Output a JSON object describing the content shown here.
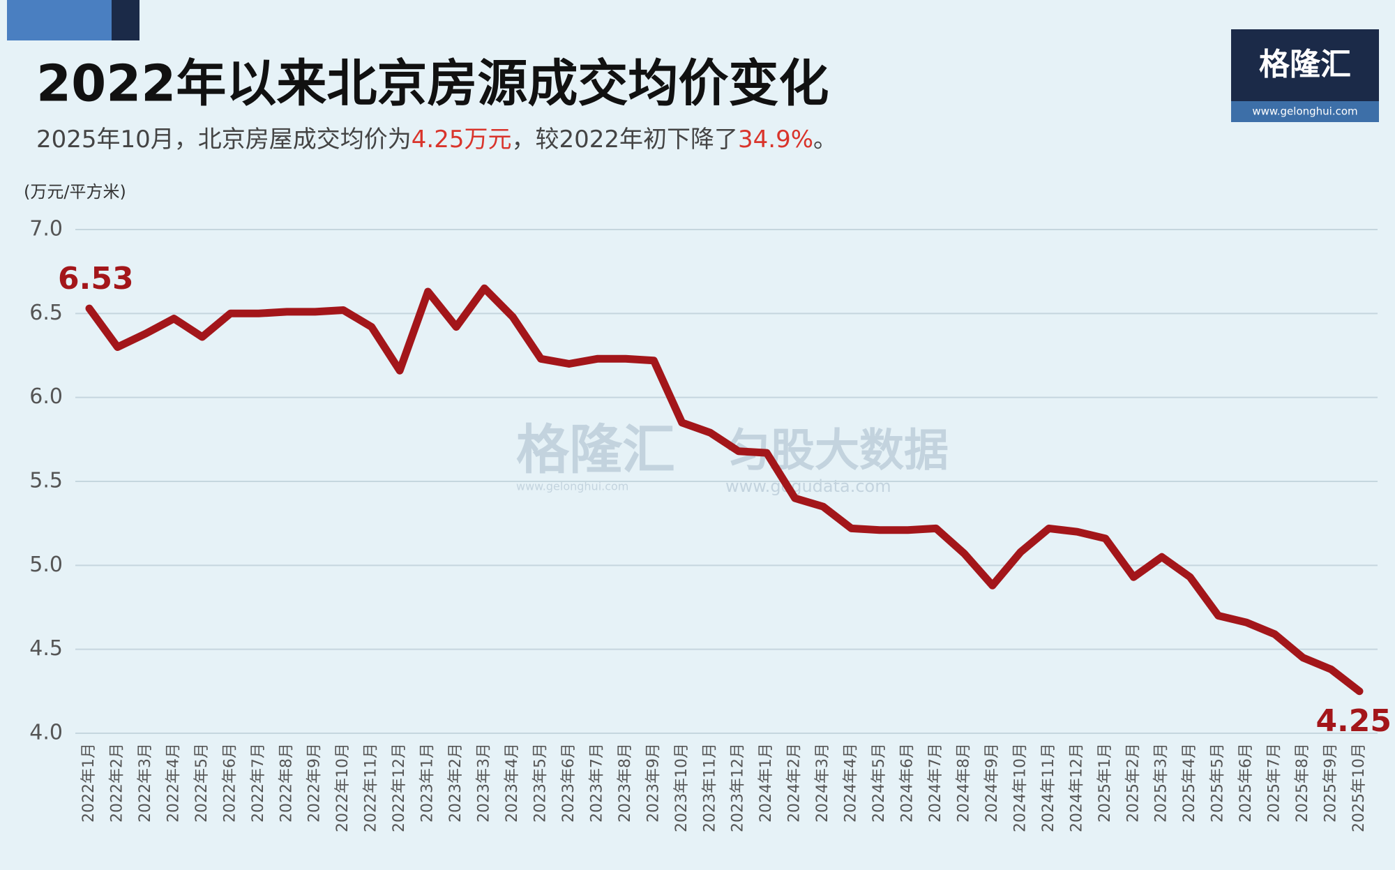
{
  "chart_data": {
    "type": "line",
    "title": "2022年以来北京房源成交均价变化",
    "subtitle_parts": [
      "2025年10月，北京房屋成交均价为",
      "4.25万元",
      "，较2022年初下降了",
      "34.9%",
      "。"
    ],
    "ylabel": "(万元/平方米)",
    "categories": [
      "2022年1月",
      "2022年2月",
      "2022年3月",
      "2022年4月",
      "2022年5月",
      "2022年6月",
      "2022年7月",
      "2022年8月",
      "2022年9月",
      "2022年10月",
      "2022年11月",
      "2022年12月",
      "2023年1月",
      "2023年2月",
      "2023年3月",
      "2023年4月",
      "2023年5月",
      "2023年6月",
      "2023年7月",
      "2023年8月",
      "2023年9月",
      "2023年10月",
      "2023年11月",
      "2023年12月",
      "2024年1月",
      "2024年2月",
      "2024年3月",
      "2024年4月",
      "2024年5月",
      "2024年6月",
      "2024年7月",
      "2024年8月",
      "2024年9月",
      "2024年10月",
      "2024年11月",
      "2024年12月",
      "2025年1月",
      "2025年2月",
      "2025年3月",
      "2025年4月",
      "2025年5月",
      "2025年6月",
      "2025年7月",
      "2025年8月",
      "2025年9月",
      "2025年10月"
    ],
    "values": [
      6.53,
      6.3,
      6.38,
      6.47,
      6.36,
      6.5,
      6.5,
      6.51,
      6.51,
      6.52,
      6.42,
      6.16,
      6.63,
      6.42,
      6.65,
      6.48,
      6.23,
      6.2,
      6.23,
      6.23,
      6.22,
      5.85,
      5.79,
      5.68,
      5.67,
      5.4,
      5.35,
      5.22,
      5.21,
      5.21,
      5.22,
      5.07,
      4.88,
      5.08,
      5.22,
      5.2,
      5.16,
      4.93,
      5.05,
      4.93,
      4.7,
      4.66,
      4.59,
      4.45,
      4.38,
      4.25
    ],
    "color": "#a3161a",
    "ylim": [
      4.0,
      7.0
    ],
    "yticks": [
      {
        "value": 4,
        "label": "4.0"
      },
      {
        "value": 4.5,
        "label": "4.5"
      },
      {
        "value": 5,
        "label": "5.0"
      },
      {
        "value": 5.5,
        "label": "5.5"
      },
      {
        "value": 6,
        "label": "6.0"
      },
      {
        "value": 6.5,
        "label": "6.5"
      },
      {
        "value": 7,
        "label": "7.0"
      }
    ],
    "grid": true
  },
  "logo": {
    "name": "格隆汇",
    "url": "www.gelonghui.com"
  },
  "watermark": {
    "brand": "格隆汇",
    "brand_url": "www.gelonghui.com",
    "partner": "匀股大数据",
    "partner_url": "www.gogudata.com"
  }
}
